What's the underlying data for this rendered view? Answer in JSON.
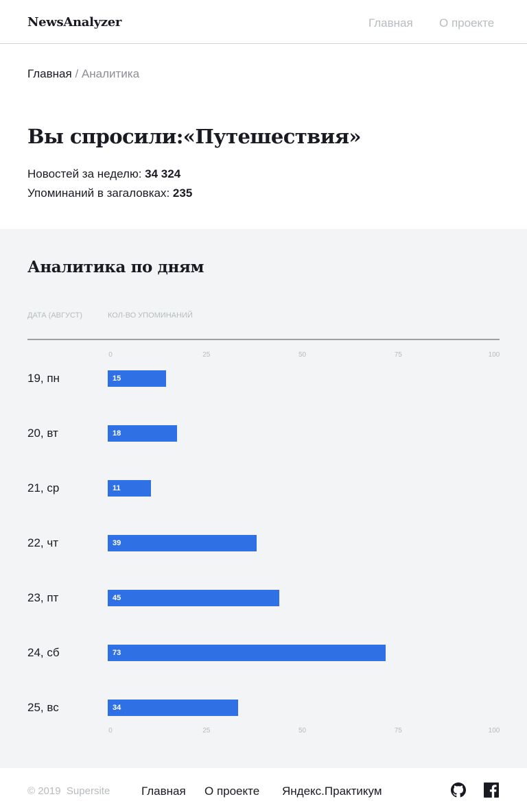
{
  "header": {
    "logo": "NewsAnalyzer",
    "nav": [
      "Главная",
      "О проекте"
    ]
  },
  "breadcrumb": {
    "home": "Главная",
    "separator": "/",
    "current": "Аналитика"
  },
  "query": {
    "title": "Вы спросили:«Путешествия»",
    "news_label": "Новостей за неделю: ",
    "news_count": "34 324",
    "headlines_label": "Упоминаний в загаловках: ",
    "headlines_count": "235"
  },
  "analytics": {
    "title": "Аналитика по дням",
    "col_date": "Дата (август)",
    "col_count": "Кол-во упоминаний",
    "ticks": [
      "0",
      "25",
      "50",
      "75",
      "100"
    ]
  },
  "chart_data": {
    "type": "bar",
    "orientation": "horizontal",
    "categories": [
      "19, пн",
      "20, вт",
      "21, ср",
      "22, чт",
      "23, пт",
      "24, сб",
      "25, вс"
    ],
    "values": [
      15,
      18,
      11,
      39,
      45,
      73,
      34
    ],
    "xlim": [
      0,
      100
    ],
    "xticks": [
      0,
      25,
      50,
      75,
      100
    ],
    "bar_color": "#2f71e5"
  },
  "footer": {
    "copyright": "© 2019  Supersite",
    "links": [
      "Главная",
      "О проекте",
      "Яндекс.Практикум"
    ],
    "icons": [
      "github-icon",
      "facebook-icon"
    ]
  },
  "colors": {
    "accent": "#2f71e5",
    "muted": "#b6bcbf",
    "section_bg": "#f3f4f6",
    "text": "#1a1b22"
  }
}
